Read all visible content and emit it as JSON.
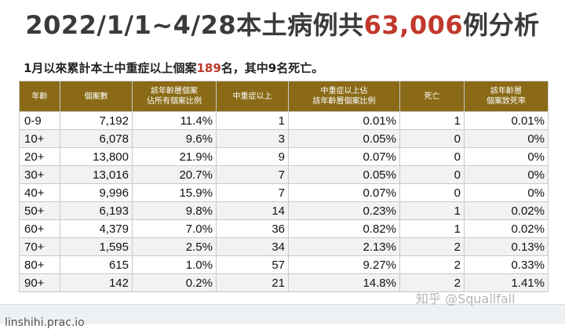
{
  "title": {
    "prefix": "2022/1/1~4/28本土病例共",
    "highlight": "63,006",
    "suffix": "例分析"
  },
  "subtitle": {
    "prefix": "1月以來累計本土中重症以上個案",
    "highlight": "189",
    "suffix": "名，其中9名死亡。"
  },
  "table": {
    "headers": [
      "年齡",
      "個案數",
      "該年齡層個案\n佔所有個案比例",
      "中重症以上",
      "中重症以上佔\n該年齡層個案比例",
      "死亡",
      "該年齡層\n個案致死率"
    ],
    "rows": [
      [
        "0-9",
        "7,192",
        "11.4%",
        "1",
        "0.01%",
        "1",
        "0.01%"
      ],
      [
        "10+",
        "6,078",
        "9.6%",
        "3",
        "0.05%",
        "0",
        "0%"
      ],
      [
        "20+",
        "13,800",
        "21.9%",
        "9",
        "0.07%",
        "0",
        "0%"
      ],
      [
        "30+",
        "13,016",
        "20.7%",
        "7",
        "0.05%",
        "0",
        "0%"
      ],
      [
        "40+",
        "9,996",
        "15.9%",
        "7",
        "0.07%",
        "0",
        "0%"
      ],
      [
        "50+",
        "6,193",
        "9.8%",
        "14",
        "0.23%",
        "1",
        "0.02%"
      ],
      [
        "60+",
        "4,379",
        "7.0%",
        "36",
        "0.82%",
        "1",
        "0.02%"
      ],
      [
        "70+",
        "1,595",
        "2.5%",
        "34",
        "2.13%",
        "2",
        "0.13%"
      ],
      [
        "80+",
        "615",
        "1.0%",
        "57",
        "9.27%",
        "2",
        "0.33%"
      ],
      [
        "90+",
        "142",
        "0.2%",
        "21",
        "14.8%",
        "2",
        "1.41%"
      ]
    ]
  },
  "colors": {
    "header_bg": "#8a6a16",
    "highlight": "#c0392b"
  },
  "watermark": "知乎 @Squallfall",
  "bottom_text": "linshihi.prac.io"
}
